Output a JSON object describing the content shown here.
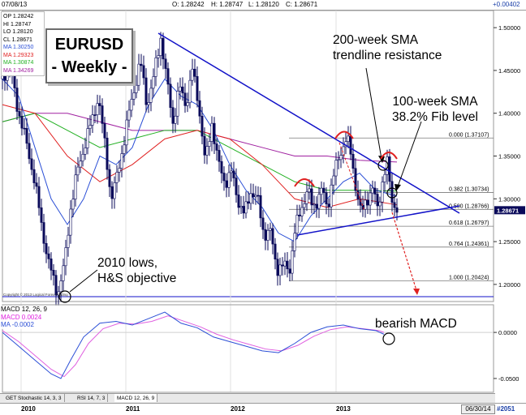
{
  "header": {
    "date": "07/08/13",
    "open": "O: 1.28242",
    "high": "H: 1.28747",
    "low": "L: 1.28120",
    "close": "C: 1.28671",
    "change": "+0.00402"
  },
  "stats_box": [
    {
      "text": "OP 1.28242",
      "color": "#000000"
    },
    {
      "text": "HI 1.28747",
      "color": "#000000"
    },
    {
      "text": "LO 1.28120",
      "color": "#000000"
    },
    {
      "text": "CL 1.28671",
      "color": "#000000"
    },
    {
      "text": "MA 1.30250",
      "color": "#2b4fd6"
    },
    {
      "text": "MA 1.29323",
      "color": "#e02020"
    },
    {
      "text": "MA 1.30874",
      "color": "#22b022"
    },
    {
      "text": "MA 1.34269",
      "color": "#a020a0"
    }
  ],
  "title": {
    "line1": "EURUSD",
    "line2": "- Weekly -"
  },
  "annotations": {
    "sma200": [
      "200-week SMA",
      "trendline resistance"
    ],
    "sma100": [
      "100-week SMA",
      "38.2% Fib level"
    ],
    "lows": [
      "2010 lows,",
      "H&S objective"
    ],
    "macd": "bearish MACD"
  },
  "copyright": "Copyright © 2013 Logical Forex Trading",
  "macd_box": {
    "title": "MACD 12, 26, 9",
    "macd": "MACD 0.0024",
    "ma": "MA   -0.0002"
  },
  "tabs": [
    "GET Stochastic 14, 3, 3",
    "RSI 14, 7, 3",
    "MACD 12, 26, 9"
  ],
  "end_date": "06/30/14",
  "bar_count": "#2051",
  "colors": {
    "price": "#0a0a5a",
    "trendline": "#1212c8",
    "sma_blue": "#2b4fd6",
    "sma_red": "#e02020",
    "sma_green": "#22b022",
    "sma_purple": "#a020a0",
    "fib": "#555555",
    "projection": "#e02020",
    "arcs": "#e02020",
    "macd_line": "#2b4fd6",
    "macd_signal": "#e060e0"
  },
  "chart_data": {
    "type": "candlestick",
    "price_axis": {
      "ticks": [
        "1.50000",
        "1.45000",
        "1.40000",
        "1.35000",
        "1.30000",
        "1.25000",
        "1.20000"
      ],
      "range": [
        1.18,
        1.52
      ],
      "current": "1.28671"
    },
    "macd_axis": {
      "ticks": [
        "0.0000",
        "-0.0500"
      ],
      "range": [
        -0.065,
        0.03
      ]
    },
    "x_labels": [
      "2010",
      "2011",
      "2012",
      "2013"
    ],
    "fib_levels": [
      {
        "label": "0.000 (1.37107)",
        "value": 1.37107
      },
      {
        "label": "0.382 (1.30734)",
        "value": 1.30734
      },
      {
        "label": "0.500 (1.28766)",
        "value": 1.28766
      },
      {
        "label": "0.618 (1.26797)",
        "value": 1.26797
      },
      {
        "label": "0.764 (1.24361)",
        "value": 1.24361
      },
      {
        "label": "1.000 (1.20424)",
        "value": 1.20424
      }
    ],
    "price_path": [
      [
        0,
        1.44
      ],
      [
        8,
        1.46
      ],
      [
        18,
        1.41
      ],
      [
        28,
        1.37
      ],
      [
        38,
        1.33
      ],
      [
        48,
        1.27
      ],
      [
        58,
        1.22
      ],
      [
        68,
        1.19
      ],
      [
        76,
        1.22
      ],
      [
        84,
        1.29
      ],
      [
        92,
        1.33
      ],
      [
        100,
        1.36
      ],
      [
        110,
        1.39
      ],
      [
        118,
        1.42
      ],
      [
        128,
        1.35
      ],
      [
        134,
        1.3
      ],
      [
        140,
        1.32
      ],
      [
        150,
        1.37
      ],
      [
        160,
        1.42
      ],
      [
        170,
        1.46
      ],
      [
        178,
        1.41
      ],
      [
        186,
        1.44
      ],
      [
        195,
        1.49
      ],
      [
        202,
        1.44
      ],
      [
        210,
        1.39
      ],
      [
        218,
        1.43
      ],
      [
        226,
        1.41
      ],
      [
        234,
        1.45
      ],
      [
        242,
        1.41
      ],
      [
        250,
        1.34
      ],
      [
        258,
        1.39
      ],
      [
        266,
        1.34
      ],
      [
        274,
        1.32
      ],
      [
        282,
        1.33
      ],
      [
        290,
        1.3
      ],
      [
        298,
        1.28
      ],
      [
        306,
        1.31
      ],
      [
        314,
        1.3
      ],
      [
        322,
        1.26
      ],
      [
        330,
        1.26
      ],
      [
        338,
        1.22
      ],
      [
        346,
        1.22
      ],
      [
        354,
        1.22
      ],
      [
        360,
        1.26
      ],
      [
        368,
        1.29
      ],
      [
        376,
        1.31
      ],
      [
        382,
        1.29
      ],
      [
        388,
        1.3
      ],
      [
        394,
        1.31
      ],
      [
        400,
        1.29
      ],
      [
        406,
        1.32
      ],
      [
        412,
        1.34
      ],
      [
        418,
        1.36
      ],
      [
        424,
        1.37
      ],
      [
        430,
        1.35
      ],
      [
        436,
        1.31
      ],
      [
        442,
        1.28
      ],
      [
        448,
        1.3
      ],
      [
        456,
        1.31
      ],
      [
        462,
        1.29
      ],
      [
        468,
        1.32
      ],
      [
        474,
        1.34
      ],
      [
        480,
        1.3
      ],
      [
        486,
        1.287
      ]
    ],
    "sma_blue_path": [
      [
        0,
        1.44
      ],
      [
        20,
        1.42
      ],
      [
        40,
        1.36
      ],
      [
        60,
        1.3
      ],
      [
        80,
        1.27
      ],
      [
        100,
        1.3
      ],
      [
        120,
        1.35
      ],
      [
        140,
        1.34
      ],
      [
        160,
        1.36
      ],
      [
        180,
        1.41
      ],
      [
        200,
        1.44
      ],
      [
        220,
        1.42
      ],
      [
        240,
        1.41
      ],
      [
        260,
        1.38
      ],
      [
        280,
        1.34
      ],
      [
        300,
        1.31
      ],
      [
        320,
        1.29
      ],
      [
        340,
        1.26
      ],
      [
        360,
        1.25
      ],
      [
        380,
        1.28
      ],
      [
        400,
        1.3
      ],
      [
        420,
        1.32
      ],
      [
        440,
        1.33
      ],
      [
        460,
        1.31
      ],
      [
        486,
        1.303
      ]
    ],
    "sma_red_path": [
      [
        0,
        1.41
      ],
      [
        40,
        1.4
      ],
      [
        80,
        1.35
      ],
      [
        120,
        1.32
      ],
      [
        160,
        1.34
      ],
      [
        200,
        1.37
      ],
      [
        240,
        1.38
      ],
      [
        280,
        1.37
      ],
      [
        320,
        1.34
      ],
      [
        360,
        1.3
      ],
      [
        400,
        1.29
      ],
      [
        440,
        1.3
      ],
      [
        486,
        1.293
      ]
    ],
    "sma_green_path": [
      [
        0,
        1.39
      ],
      [
        40,
        1.4
      ],
      [
        80,
        1.38
      ],
      [
        120,
        1.36
      ],
      [
        160,
        1.37
      ],
      [
        200,
        1.38
      ],
      [
        240,
        1.38
      ],
      [
        280,
        1.36
      ],
      [
        320,
        1.34
      ],
      [
        360,
        1.32
      ],
      [
        400,
        1.31
      ],
      [
        440,
        1.31
      ],
      [
        486,
        1.309
      ]
    ],
    "sma_purple_path": [
      [
        0,
        1.39
      ],
      [
        40,
        1.4
      ],
      [
        80,
        1.4
      ],
      [
        120,
        1.39
      ],
      [
        160,
        1.38
      ],
      [
        200,
        1.38
      ],
      [
        240,
        1.38
      ],
      [
        280,
        1.37
      ],
      [
        320,
        1.36
      ],
      [
        360,
        1.35
      ],
      [
        400,
        1.35
      ],
      [
        440,
        1.345
      ],
      [
        486,
        1.343
      ]
    ],
    "macd_path": [
      [
        0,
        0.0
      ],
      [
        20,
        -0.015
      ],
      [
        40,
        -0.03
      ],
      [
        60,
        -0.045
      ],
      [
        72,
        -0.05
      ],
      [
        84,
        -0.03
      ],
      [
        100,
        -0.005
      ],
      [
        120,
        0.01
      ],
      [
        140,
        0.012
      ],
      [
        160,
        0.008
      ],
      [
        180,
        0.015
      ],
      [
        200,
        0.022
      ],
      [
        220,
        0.01
      ],
      [
        240,
        0.005
      ],
      [
        260,
        -0.005
      ],
      [
        280,
        -0.01
      ],
      [
        300,
        -0.015
      ],
      [
        320,
        -0.02
      ],
      [
        340,
        -0.022
      ],
      [
        360,
        -0.012
      ],
      [
        380,
        0.0
      ],
      [
        400,
        0.006
      ],
      [
        420,
        0.008
      ],
      [
        440,
        0.004
      ],
      [
        460,
        0.002
      ],
      [
        470,
        -0.002
      ]
    ],
    "macd_signal_path": [
      [
        0,
        0.002
      ],
      [
        20,
        -0.01
      ],
      [
        40,
        -0.025
      ],
      [
        60,
        -0.04
      ],
      [
        76,
        -0.048
      ],
      [
        90,
        -0.035
      ],
      [
        106,
        -0.012
      ],
      [
        124,
        0.004
      ],
      [
        144,
        0.01
      ],
      [
        164,
        0.009
      ],
      [
        184,
        0.012
      ],
      [
        204,
        0.018
      ],
      [
        224,
        0.012
      ],
      [
        244,
        0.006
      ],
      [
        264,
        -0.002
      ],
      [
        284,
        -0.008
      ],
      [
        304,
        -0.013
      ],
      [
        324,
        -0.018
      ],
      [
        344,
        -0.02
      ],
      [
        364,
        -0.014
      ],
      [
        384,
        -0.004
      ],
      [
        404,
        0.003
      ],
      [
        424,
        0.006
      ],
      [
        444,
        0.004
      ],
      [
        464,
        0.002
      ],
      [
        470,
        0.0
      ]
    ]
  }
}
